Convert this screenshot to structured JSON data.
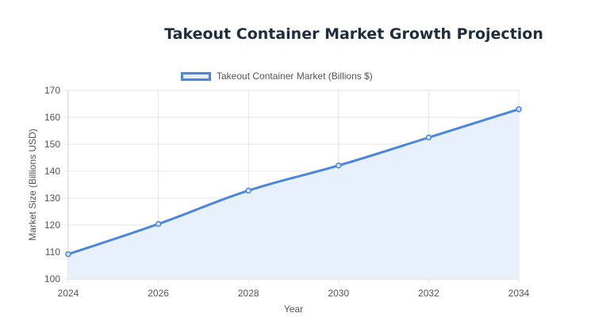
{
  "chart_data": {
    "type": "line",
    "title": "Takeout Container Market Growth Projection",
    "xlabel": "Year",
    "ylabel": "Market Size (Billions USD)",
    "x": [
      2024,
      2026,
      2028,
      2030,
      2032,
      2034
    ],
    "series": [
      {
        "name": "Takeout Container Market (Billions $)",
        "values": [
          109.2,
          120.4,
          132.8,
          142.1,
          152.5,
          163.0
        ],
        "color": "#4a86dd",
        "fill": "#e8f0fc"
      }
    ],
    "x_ticks": [
      "2024",
      "2026",
      "2028",
      "2030",
      "2032",
      "2034"
    ],
    "y_ticks": [
      "100",
      "110",
      "120",
      "130",
      "140",
      "150",
      "160",
      "170"
    ],
    "xlim": [
      2024,
      2034
    ],
    "ylim": [
      100,
      170
    ],
    "grid": true,
    "legend": "top-center",
    "fill_area": true
  }
}
